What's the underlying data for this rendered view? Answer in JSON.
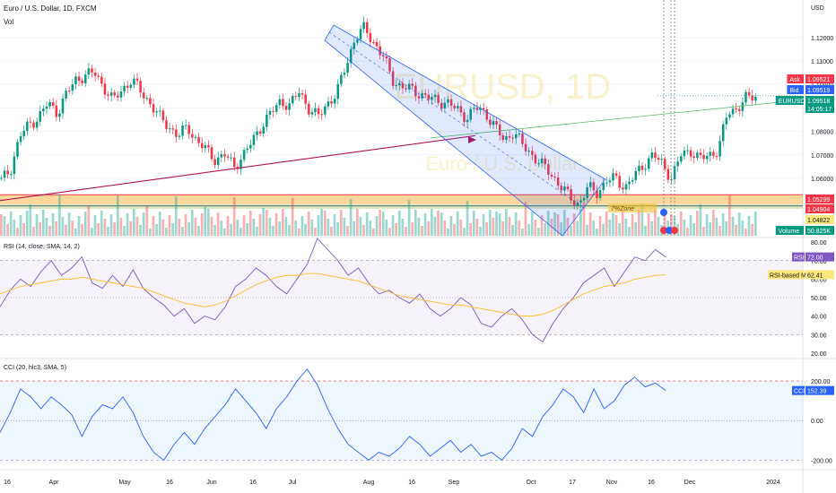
{
  "chart_data": {
    "type": "candlestick",
    "title": "Euro / U.S. Dollar, 1D, FXCM",
    "currency": "USD",
    "watermark": {
      "symbol": "EURUSD, 1D",
      "name": "Euro / U.S. Dollar"
    },
    "volume_label": "Vol",
    "price_axis": {
      "ticks": [
        "1.12000",
        "1.11000",
        "1.10000",
        "1.09000",
        "1.08000",
        "1.07000",
        "1.06000"
      ],
      "range": [
        1.0355,
        1.1265
      ]
    },
    "x_axis": {
      "ticks": [
        "16",
        "Apr",
        "May",
        "16",
        "Jun",
        "16",
        "Jul",
        "Aug",
        "16",
        "Sep",
        "Oct",
        "17",
        "Nov",
        "16",
        "Dec",
        "2024"
      ]
    },
    "price_tags": [
      {
        "label": "Ask",
        "value": "1.09521",
        "color": "#f23645"
      },
      {
        "label": "Bid",
        "value": "1.09519",
        "color": "#2962ff"
      },
      {
        "label": "EURUSD",
        "value": "1.09518",
        "sub": "14:05:17",
        "color": "#089981"
      },
      {
        "label": "",
        "value": "1.05299",
        "color": "#f23645"
      },
      {
        "label": "",
        "value": "1.04904",
        "color": "#f23645"
      },
      {
        "label": "",
        "value": "1.04822",
        "color": "#fbe77a",
        "text_color": "#131722"
      },
      {
        "label": "Volume",
        "value": "50.825K",
        "color": "#089981"
      }
    ],
    "zone_label": "7%Zone",
    "close_path": [
      1.059,
      1.064,
      1.078,
      1.083,
      1.086,
      1.092,
      1.088,
      1.096,
      1.102,
      1.104,
      1.105,
      1.099,
      1.093,
      1.098,
      1.102,
      1.097,
      1.092,
      1.086,
      1.082,
      1.078,
      1.082,
      1.076,
      1.072,
      1.068,
      1.07,
      1.065,
      1.07,
      1.076,
      1.083,
      1.088,
      1.093,
      1.091,
      1.097,
      1.09,
      1.086,
      1.092,
      1.096,
      1.108,
      1.12,
      1.124,
      1.118,
      1.112,
      1.102,
      1.099,
      1.098,
      1.096,
      1.094,
      1.093,
      1.092,
      1.089,
      1.086,
      1.09,
      1.088,
      1.082,
      1.076,
      1.08,
      1.074,
      1.07,
      1.066,
      1.062,
      1.057,
      1.052,
      1.049,
      1.056,
      1.054,
      1.059,
      1.06,
      1.056,
      1.061,
      1.066,
      1.07,
      1.066,
      1.06,
      1.07,
      1.072,
      1.068,
      1.07,
      1.072,
      1.088,
      1.09,
      1.094,
      1.0952
    ],
    "rsi": {
      "label": "RSI (14, close, SMA, 14, 2)",
      "value": "72.00",
      "ma_label": "RSI-based MA",
      "ma_value": "62.41",
      "ticks": [
        "80.00",
        "70.00",
        "60.00",
        "50.00",
        "40.00",
        "30.00",
        "20.00"
      ],
      "range": [
        18,
        82
      ],
      "values": [
        45,
        54,
        60,
        56,
        64,
        70,
        62,
        66,
        72,
        58,
        55,
        62,
        56,
        65,
        55,
        50,
        46,
        40,
        44,
        36,
        40,
        38,
        45,
        56,
        60,
        66,
        62,
        56,
        52,
        60,
        68,
        82,
        76,
        70,
        62,
        66,
        58,
        52,
        54,
        50,
        47,
        52,
        44,
        40,
        44,
        50,
        46,
        36,
        34,
        40,
        44,
        38,
        30,
        26,
        36,
        44,
        50,
        58,
        62,
        66,
        56,
        64,
        72,
        70,
        76,
        72
      ],
      "ma_values": [
        52,
        54,
        56,
        57,
        58,
        59,
        60,
        60,
        61,
        60,
        59,
        58,
        57,
        56,
        55,
        53,
        51,
        49,
        47,
        46,
        45,
        46,
        48,
        51,
        54,
        57,
        59,
        61,
        62,
        62,
        63,
        63,
        62,
        61,
        60,
        59,
        57,
        55,
        53,
        51,
        50,
        49,
        48,
        47,
        46,
        46,
        45,
        44,
        43,
        42,
        41,
        40,
        40,
        41,
        43,
        46,
        49,
        52,
        54,
        56,
        57,
        58,
        60,
        61,
        62,
        62.41
      ]
    },
    "cci": {
      "label": "CCI (20, hlc3, SMA, 5)",
      "value": "152.39",
      "ticks": [
        "200.00",
        "0.00",
        "-200.00"
      ],
      "range": [
        -230,
        300
      ],
      "values": [
        -60,
        40,
        160,
        120,
        60,
        120,
        80,
        30,
        -80,
        20,
        80,
        60,
        120,
        40,
        -80,
        -160,
        -200,
        -120,
        -60,
        -120,
        -40,
        20,
        80,
        160,
        100,
        40,
        -40,
        60,
        120,
        200,
        260,
        180,
        60,
        -40,
        -120,
        -160,
        -200,
        -160,
        -180,
        -140,
        -80,
        -120,
        -180,
        -140,
        -100,
        -160,
        -120,
        -180,
        -160,
        -200,
        -140,
        -40,
        -80,
        20,
        80,
        160,
        120,
        40,
        160,
        60,
        100,
        180,
        220,
        170,
        190,
        152
      ]
    }
  }
}
